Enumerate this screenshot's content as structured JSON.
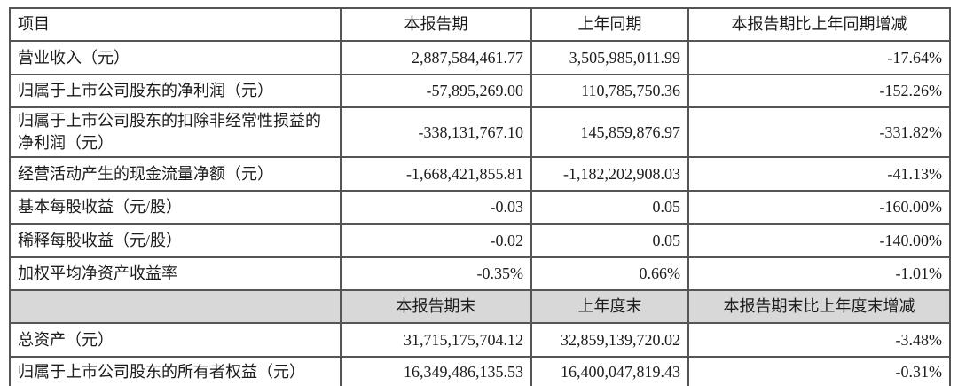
{
  "table": {
    "title_semantic": "主要会计数据和财务指标",
    "colors": {
      "label_bg": "#d8d8d8",
      "mid_header_bg": "#d8d8d8",
      "data_bg": "#ffffff",
      "border": "#555555",
      "text": "#1c1c1c"
    },
    "header_top": {
      "col_item": "项目",
      "col_current": "本报告期",
      "col_prior": "上年同期",
      "col_change": "本报告期比上年同期增减"
    },
    "rows_period": [
      {
        "item": "营业收入（元）",
        "current": "2,887,584,461.77",
        "prior": "3,505,985,011.99",
        "change": "-17.64%"
      },
      {
        "item": "归属于上市公司股东的净利润（元）",
        "current": "-57,895,269.00",
        "prior": "110,785,750.36",
        "change": "-152.26%"
      },
      {
        "item": "归属于上市公司股东的扣除非经常性损益的净利润（元）",
        "current": "-338,131,767.10",
        "prior": "145,859,876.97",
        "change": "-331.82%"
      },
      {
        "item": "经营活动产生的现金流量净额（元）",
        "current": "-1,668,421,855.81",
        "prior": "-1,182,202,908.03",
        "change": "-41.13%"
      },
      {
        "item": "基本每股收益（元/股）",
        "current": "-0.03",
        "prior": "0.05",
        "change": "-160.00%"
      },
      {
        "item": "稀释每股收益（元/股）",
        "current": "-0.02",
        "prior": "0.05",
        "change": "-140.00%"
      },
      {
        "item": "加权平均净资产收益率",
        "current": "-0.35%",
        "prior": "0.66%",
        "change": "-1.01%"
      }
    ],
    "header_mid": {
      "col_item": "",
      "col_current": "本报告期末",
      "col_prior": "上年度末",
      "col_change": "本报告期末比上年度末增减"
    },
    "rows_yearend": [
      {
        "item": "总资产（元）",
        "current": "31,715,175,704.12",
        "prior": "32,859,139,720.02",
        "change": "-3.48%"
      },
      {
        "item": "归属于上市公司股东的所有者权益（元）",
        "current": "16,349,486,135.53",
        "prior": "16,400,047,819.43",
        "change": "-0.31%"
      }
    ]
  }
}
